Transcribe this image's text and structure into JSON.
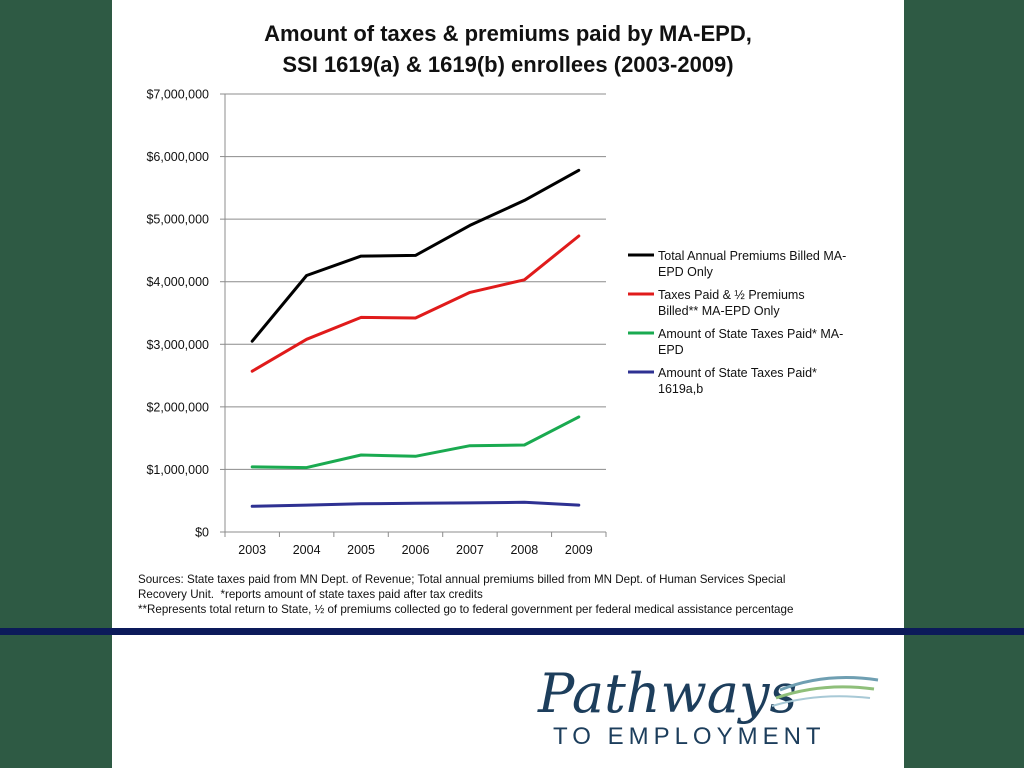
{
  "chart_data": {
    "type": "line",
    "title": [
      "Amount of taxes & premiums paid by MA-EPD,",
      "SSI 1619(a) & 1619(b) enrollees (2003-2009)"
    ],
    "x": [
      "2003",
      "2004",
      "2005",
      "2006",
      "2007",
      "2008",
      "2009"
    ],
    "ylim": [
      0,
      7000000
    ],
    "yticks": [
      "$0",
      "$1,000,000",
      "$2,000,000",
      "$3,000,000",
      "$4,000,000",
      "$5,000,000",
      "$6,000,000",
      "$7,000,000"
    ],
    "grid": true,
    "legend_position": "right",
    "series": [
      {
        "name": "Total Annual Premiums Billed MA-EPD Only",
        "legend_lines": [
          "Total Annual Premiums Billed MA-",
          "EPD Only"
        ],
        "color": "#000000",
        "values": [
          3050000,
          4100000,
          4410000,
          4420000,
          4900000,
          5300000,
          5780000
        ]
      },
      {
        "name": "Taxes Paid & ½ Premiums Billed** MA-EPD Only",
        "legend_lines": [
          "Taxes Paid & ½ Premiums",
          "Billed** MA-EPD Only"
        ],
        "color": "#e01b1b",
        "values": [
          2570000,
          3080000,
          3430000,
          3420000,
          3830000,
          4030000,
          4730000
        ]
      },
      {
        "name": "Amount of State Taxes Paid* MA-EPD",
        "legend_lines": [
          "Amount of State Taxes Paid* MA-",
          "EPD"
        ],
        "color": "#1aaa50",
        "values": [
          1040000,
          1030000,
          1230000,
          1210000,
          1380000,
          1390000,
          1840000
        ]
      },
      {
        "name": "Amount of State Taxes Paid* 1619a,b",
        "legend_lines": [
          "Amount of State Taxes Paid*",
          "1619a,b"
        ],
        "color": "#2e3192",
        "values": [
          410000,
          430000,
          450000,
          460000,
          465000,
          475000,
          430000
        ]
      }
    ]
  },
  "sources": [
    "Sources: State taxes paid from MN Dept. of Revenue; Total annual premiums billed from MN Dept. of Human Services Special",
    "Recovery Unit.  *reports amount of state taxes paid after tax credits",
    "**Represents total return to State, ½ of premiums collected go to federal government per federal medical assistance percentage"
  ],
  "logo": {
    "script_text": "Pathways",
    "subtext": "TO   EMPLOYMENT",
    "color": "#1d3e5c"
  },
  "colors": {
    "background": "#2e5a44",
    "rule": "#0c1a5a",
    "panel": "#ffffff"
  }
}
